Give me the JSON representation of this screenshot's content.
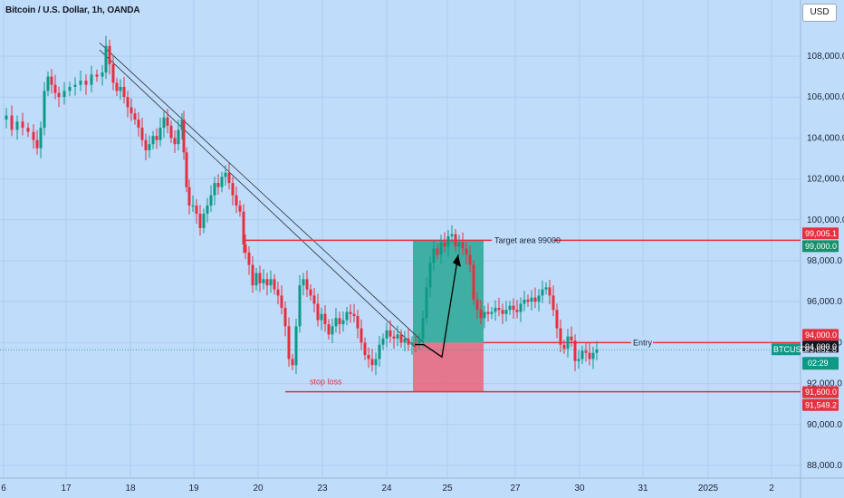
{
  "header": {
    "title": "Bitcoin / U.S. Dollar, 1h, OANDA",
    "currency_button": "USD"
  },
  "chart_data": {
    "type": "candlestick",
    "y_ticks": [
      "108,000.0",
      "106,000.0",
      "104,000.0",
      "102,000.0",
      "100,000.0",
      "98,000.0",
      "96,000.0",
      "94,000.0",
      "92,000.0",
      "90,000.0",
      "88,000.0"
    ],
    "y_tick_values": [
      108000,
      106000,
      104000,
      102000,
      100000,
      98000,
      96000,
      94000,
      92000,
      90000,
      88000
    ],
    "ylim": [
      87200,
      110600
    ],
    "x_ticks": [
      "6",
      "17",
      "18",
      "19",
      "20",
      "23",
      "24",
      "25",
      "27",
      "30",
      "31",
      "2025",
      "2"
    ],
    "price_markers": [
      {
        "text": "99,005.1",
        "value": 99005.1,
        "color": "#e5303f"
      },
      {
        "text": "99,000.0",
        "value": 99000.0,
        "color": "#17916a"
      },
      {
        "text": "94,000.0",
        "value": 94000.0,
        "color": "#e5303f"
      },
      {
        "text": "94,000.0",
        "value": 94000.0,
        "color": "#131722"
      },
      {
        "text": "93,652.8",
        "value": 93652.8,
        "color": "#17916a"
      },
      {
        "text": "91,600.0",
        "value": 91600.0,
        "color": "#e5303f"
      },
      {
        "text": "91,549.2",
        "value": 91549.2,
        "color": "#e5303f"
      }
    ],
    "ticker": {
      "symbol": "BTCUSD",
      "price": "93,652.8",
      "countdown": "02:29"
    },
    "annotations": {
      "target": "Target area 99000",
      "entry": "Entry",
      "stop": "stop loss"
    },
    "levels": {
      "target": 99000,
      "entry": 94000,
      "stop": 91600
    },
    "trendlines": [
      {
        "from": [
          108600,
          "17/18 session"
        ],
        "to": [
          94000,
          "24"
        ]
      },
      {
        "from": [
          108400,
          "17/18 session"
        ],
        "to": [
          93800,
          "24"
        ]
      }
    ],
    "path": [
      [
        0,
        104900
      ],
      [
        6,
        105100
      ],
      [
        12,
        104400
      ],
      [
        18,
        104800
      ],
      [
        24,
        104500
      ],
      [
        30,
        104300
      ],
      [
        36,
        103900
      ],
      [
        40,
        103500
      ],
      [
        44,
        104500
      ],
      [
        48,
        106300
      ],
      [
        52,
        107000
      ],
      [
        56,
        106600
      ],
      [
        60,
        106200
      ],
      [
        64,
        106000
      ],
      [
        70,
        106300
      ],
      [
        76,
        106500
      ],
      [
        82,
        106600
      ],
      [
        88,
        106800
      ],
      [
        94,
        106600
      ],
      [
        100,
        107100
      ],
      [
        106,
        107000
      ],
      [
        112,
        107200
      ],
      [
        116,
        108500
      ],
      [
        120,
        107600
      ],
      [
        124,
        106700
      ],
      [
        128,
        106300
      ],
      [
        132,
        106500
      ],
      [
        136,
        106000
      ],
      [
        140,
        105500
      ],
      [
        144,
        105200
      ],
      [
        148,
        104900
      ],
      [
        152,
        104500
      ],
      [
        156,
        103900
      ],
      [
        160,
        103400
      ],
      [
        164,
        103700
      ],
      [
        168,
        104100
      ],
      [
        172,
        103900
      ],
      [
        176,
        104500
      ],
      [
        180,
        105000
      ],
      [
        184,
        104600
      ],
      [
        188,
        104000
      ],
      [
        192,
        103700
      ],
      [
        196,
        104400
      ],
      [
        200,
        104900
      ],
      [
        202,
        103300
      ],
      [
        205,
        101600
      ],
      [
        208,
        100700
      ],
      [
        212,
        100700
      ],
      [
        216,
        100300
      ],
      [
        220,
        99600
      ],
      [
        224,
        100300
      ],
      [
        228,
        100700
      ],
      [
        232,
        101200
      ],
      [
        236,
        101800
      ],
      [
        240,
        101600
      ],
      [
        244,
        102100
      ],
      [
        248,
        102300
      ],
      [
        252,
        101800
      ],
      [
        256,
        101200
      ],
      [
        260,
        100700
      ],
      [
        264,
        100400
      ],
      [
        268,
        98800
      ],
      [
        270,
        98400
      ],
      [
        274,
        97800
      ],
      [
        278,
        96800
      ],
      [
        282,
        97400
      ],
      [
        286,
        96900
      ],
      [
        290,
        97100
      ],
      [
        294,
        96800
      ],
      [
        298,
        97100
      ],
      [
        302,
        96600
      ],
      [
        306,
        96300
      ],
      [
        310,
        95700
      ],
      [
        314,
        94800
      ],
      [
        318,
        93200
      ],
      [
        322,
        92900
      ],
      [
        326,
        94800
      ],
      [
        330,
        96800
      ],
      [
        334,
        97100
      ],
      [
        338,
        96600
      ],
      [
        342,
        96300
      ],
      [
        346,
        95900
      ],
      [
        350,
        95100
      ],
      [
        354,
        95400
      ],
      [
        358,
        94900
      ],
      [
        362,
        94400
      ],
      [
        366,
        94800
      ],
      [
        370,
        95200
      ],
      [
        374,
        94900
      ],
      [
        378,
        95100
      ],
      [
        382,
        95500
      ],
      [
        386,
        95400
      ],
      [
        390,
        95300
      ],
      [
        394,
        94700
      ],
      [
        398,
        94000
      ],
      [
        402,
        93400
      ],
      [
        406,
        93200
      ],
      [
        410,
        92900
      ],
      [
        414,
        93200
      ],
      [
        418,
        93900
      ],
      [
        422,
        94200
      ],
      [
        426,
        94600
      ],
      [
        430,
        94300
      ],
      [
        434,
        94200
      ],
      [
        438,
        94400
      ],
      [
        442,
        94000
      ],
      [
        446,
        94200
      ],
      [
        450,
        93900
      ],
      [
        454,
        94000
      ],
      [
        458,
        93900
      ],
      [
        462,
        94200
      ],
      [
        466,
        95200
      ],
      [
        470,
        96700
      ],
      [
        474,
        97900
      ],
      [
        478,
        98600
      ],
      [
        482,
        98300
      ],
      [
        486,
        98900
      ],
      [
        490,
        98700
      ],
      [
        494,
        99200
      ],
      [
        498,
        99300
      ],
      [
        502,
        98700
      ],
      [
        506,
        98900
      ],
      [
        510,
        98600
      ],
      [
        514,
        98300
      ],
      [
        518,
        97800
      ],
      [
        522,
        96100
      ],
      [
        526,
        95600
      ],
      [
        530,
        95200
      ],
      [
        534,
        95500
      ],
      [
        538,
        95400
      ],
      [
        542,
        95500
      ],
      [
        546,
        95700
      ],
      [
        550,
        95600
      ],
      [
        554,
        95400
      ],
      [
        558,
        95600
      ],
      [
        562,
        95800
      ],
      [
        566,
        95600
      ],
      [
        570,
        95500
      ],
      [
        574,
        95900
      ],
      [
        578,
        96100
      ],
      [
        582,
        96000
      ],
      [
        586,
        96200
      ],
      [
        590,
        96000
      ],
      [
        594,
        96300
      ],
      [
        598,
        96600
      ],
      [
        602,
        96700
      ],
      [
        606,
        96300
      ],
      [
        610,
        95600
      ],
      [
        614,
        94700
      ],
      [
        618,
        93900
      ],
      [
        622,
        93700
      ],
      [
        626,
        94300
      ],
      [
        630,
        94100
      ],
      [
        634,
        93100
      ],
      [
        638,
        93200
      ],
      [
        642,
        93600
      ],
      [
        646,
        93500
      ],
      [
        650,
        93200
      ],
      [
        654,
        93500
      ],
      [
        658,
        93650
      ]
    ]
  },
  "colors": {
    "up": "#0c9a86",
    "down": "#e5303f",
    "bg": "#bfdcfb"
  }
}
